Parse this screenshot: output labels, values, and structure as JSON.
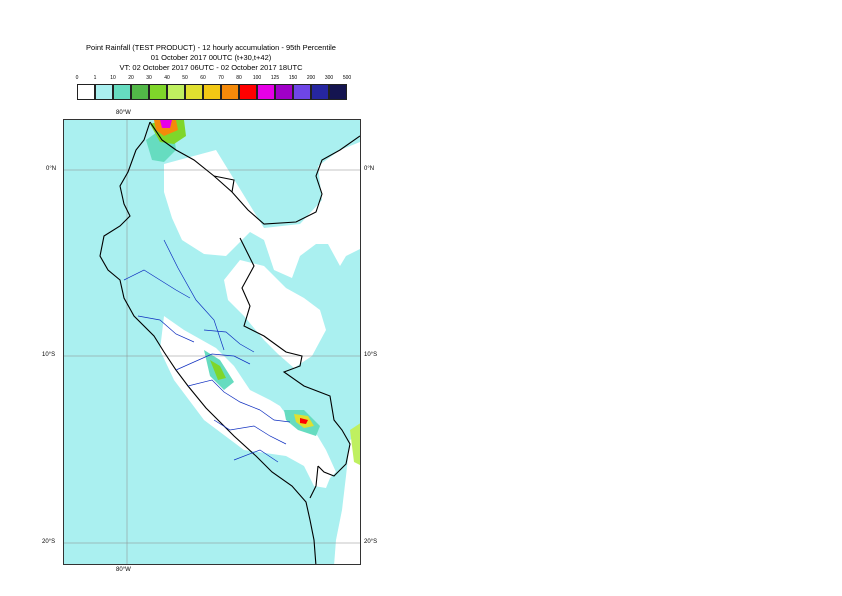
{
  "header": {
    "line1": "Point Rainfall (TEST PRODUCT) - 12 hourly accumulation - 95th Percentile",
    "line2": "01 October 2017 00UTC (t+30,t+42)",
    "line3": "VT: 02 October 2017 06UTC - 02 October 2017 18UTC"
  },
  "legend": {
    "ticks": [
      "0",
      "1",
      "10",
      "20",
      "30",
      "40",
      "50",
      "60",
      "70",
      "80",
      "100",
      "125",
      "150",
      "200",
      "300",
      "500"
    ],
    "colors": [
      "#ffffff",
      "#aaf0f0",
      "#66dcc0",
      "#52b848",
      "#7fd62a",
      "#bff060",
      "#e0e030",
      "#f2c814",
      "#f58a0a",
      "#ff0000",
      "#e600e6",
      "#a000c8",
      "#6e46e6",
      "#2626a0",
      "#141450"
    ]
  },
  "map": {
    "lat_labels": [
      "0°N",
      "10°S",
      "20°S"
    ],
    "lon_labels": [
      "80°W",
      "80°W"
    ]
  }
}
